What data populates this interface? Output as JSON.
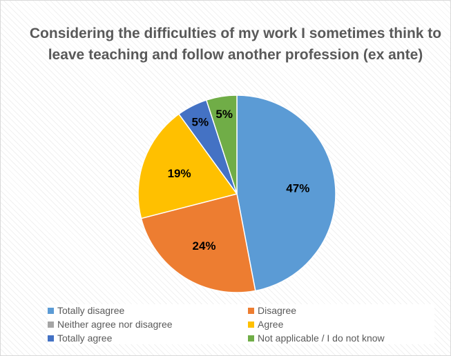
{
  "chart_data": {
    "type": "pie",
    "title": "Considering the difficulties of my work I sometimes think to leave teaching and follow another profession (ex ante)",
    "slices": [
      {
        "label": "Totally disagree",
        "value": 47,
        "data_label": "47%",
        "color": "#5b9bd5"
      },
      {
        "label": "Disagree",
        "value": 24,
        "data_label": "24%",
        "color": "#ed7d31"
      },
      {
        "label": "Neither agree nor disagree",
        "value": 0,
        "data_label": "",
        "color": "#a5a5a5"
      },
      {
        "label": "Agree",
        "value": 19,
        "data_label": "19%",
        "color": "#ffc000"
      },
      {
        "label": "Totally agree",
        "value": 5,
        "data_label": "5%",
        "color": "#4472c4"
      },
      {
        "label": "Not applicable / I do not know",
        "value": 5,
        "data_label": "5%",
        "color": "#70ad47"
      }
    ],
    "legend_position": "bottom"
  }
}
